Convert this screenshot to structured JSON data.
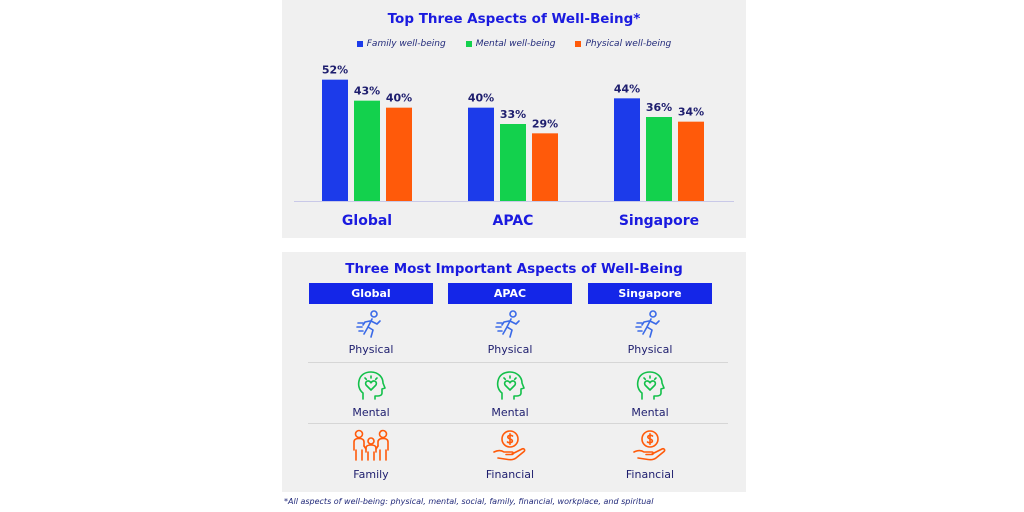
{
  "chart_data": {
    "type": "bar",
    "title": "Top Three Aspects of Well-Being*",
    "categories": [
      "Global",
      "APAC",
      "Singapore"
    ],
    "series": [
      {
        "name": "Family well-being",
        "values": [
          52,
          40,
          44
        ],
        "color": "#1c3bea"
      },
      {
        "name": "Mental well-being",
        "values": [
          43,
          33,
          36
        ],
        "color": "#13d14d"
      },
      {
        "name": "Physical well-being",
        "values": [
          40,
          29,
          34
        ],
        "color": "#ff5a0a"
      }
    ],
    "value_labels": [
      [
        "52%",
        "40%",
        "44%"
      ],
      [
        "43%",
        "33%",
        "36%"
      ],
      [
        "40%",
        "29%",
        "34%"
      ]
    ],
    "ylim": [
      0,
      60
    ],
    "legend_position": "top-center",
    "grid": false
  },
  "table": {
    "title": "Three Most Important Aspects of Well-Being",
    "headers": [
      "Global",
      "APAC",
      "Singapore"
    ],
    "rows": [
      [
        {
          "label": "Physical",
          "icon": "running-person-icon"
        },
        {
          "label": "Physical",
          "icon": "running-person-icon"
        },
        {
          "label": "Physical",
          "icon": "running-person-icon"
        }
      ],
      [
        {
          "label": "Mental",
          "icon": "mind-heart-icon"
        },
        {
          "label": "Mental",
          "icon": "mind-heart-icon"
        },
        {
          "label": "Mental",
          "icon": "mind-heart-icon"
        }
      ],
      [
        {
          "label": "Family",
          "icon": "family-icon"
        },
        {
          "label": "Financial",
          "icon": "money-hand-icon"
        },
        {
          "label": "Financial",
          "icon": "money-hand-icon"
        }
      ]
    ],
    "colors": {
      "header_bg": "#1426e8",
      "physical": "#3a6ae8",
      "mental": "#13c04a",
      "orange": "#ff5a0a"
    }
  },
  "footnote": "*All aspects of well-being: physical, mental, social, family, financial, workplace, and spiritual"
}
